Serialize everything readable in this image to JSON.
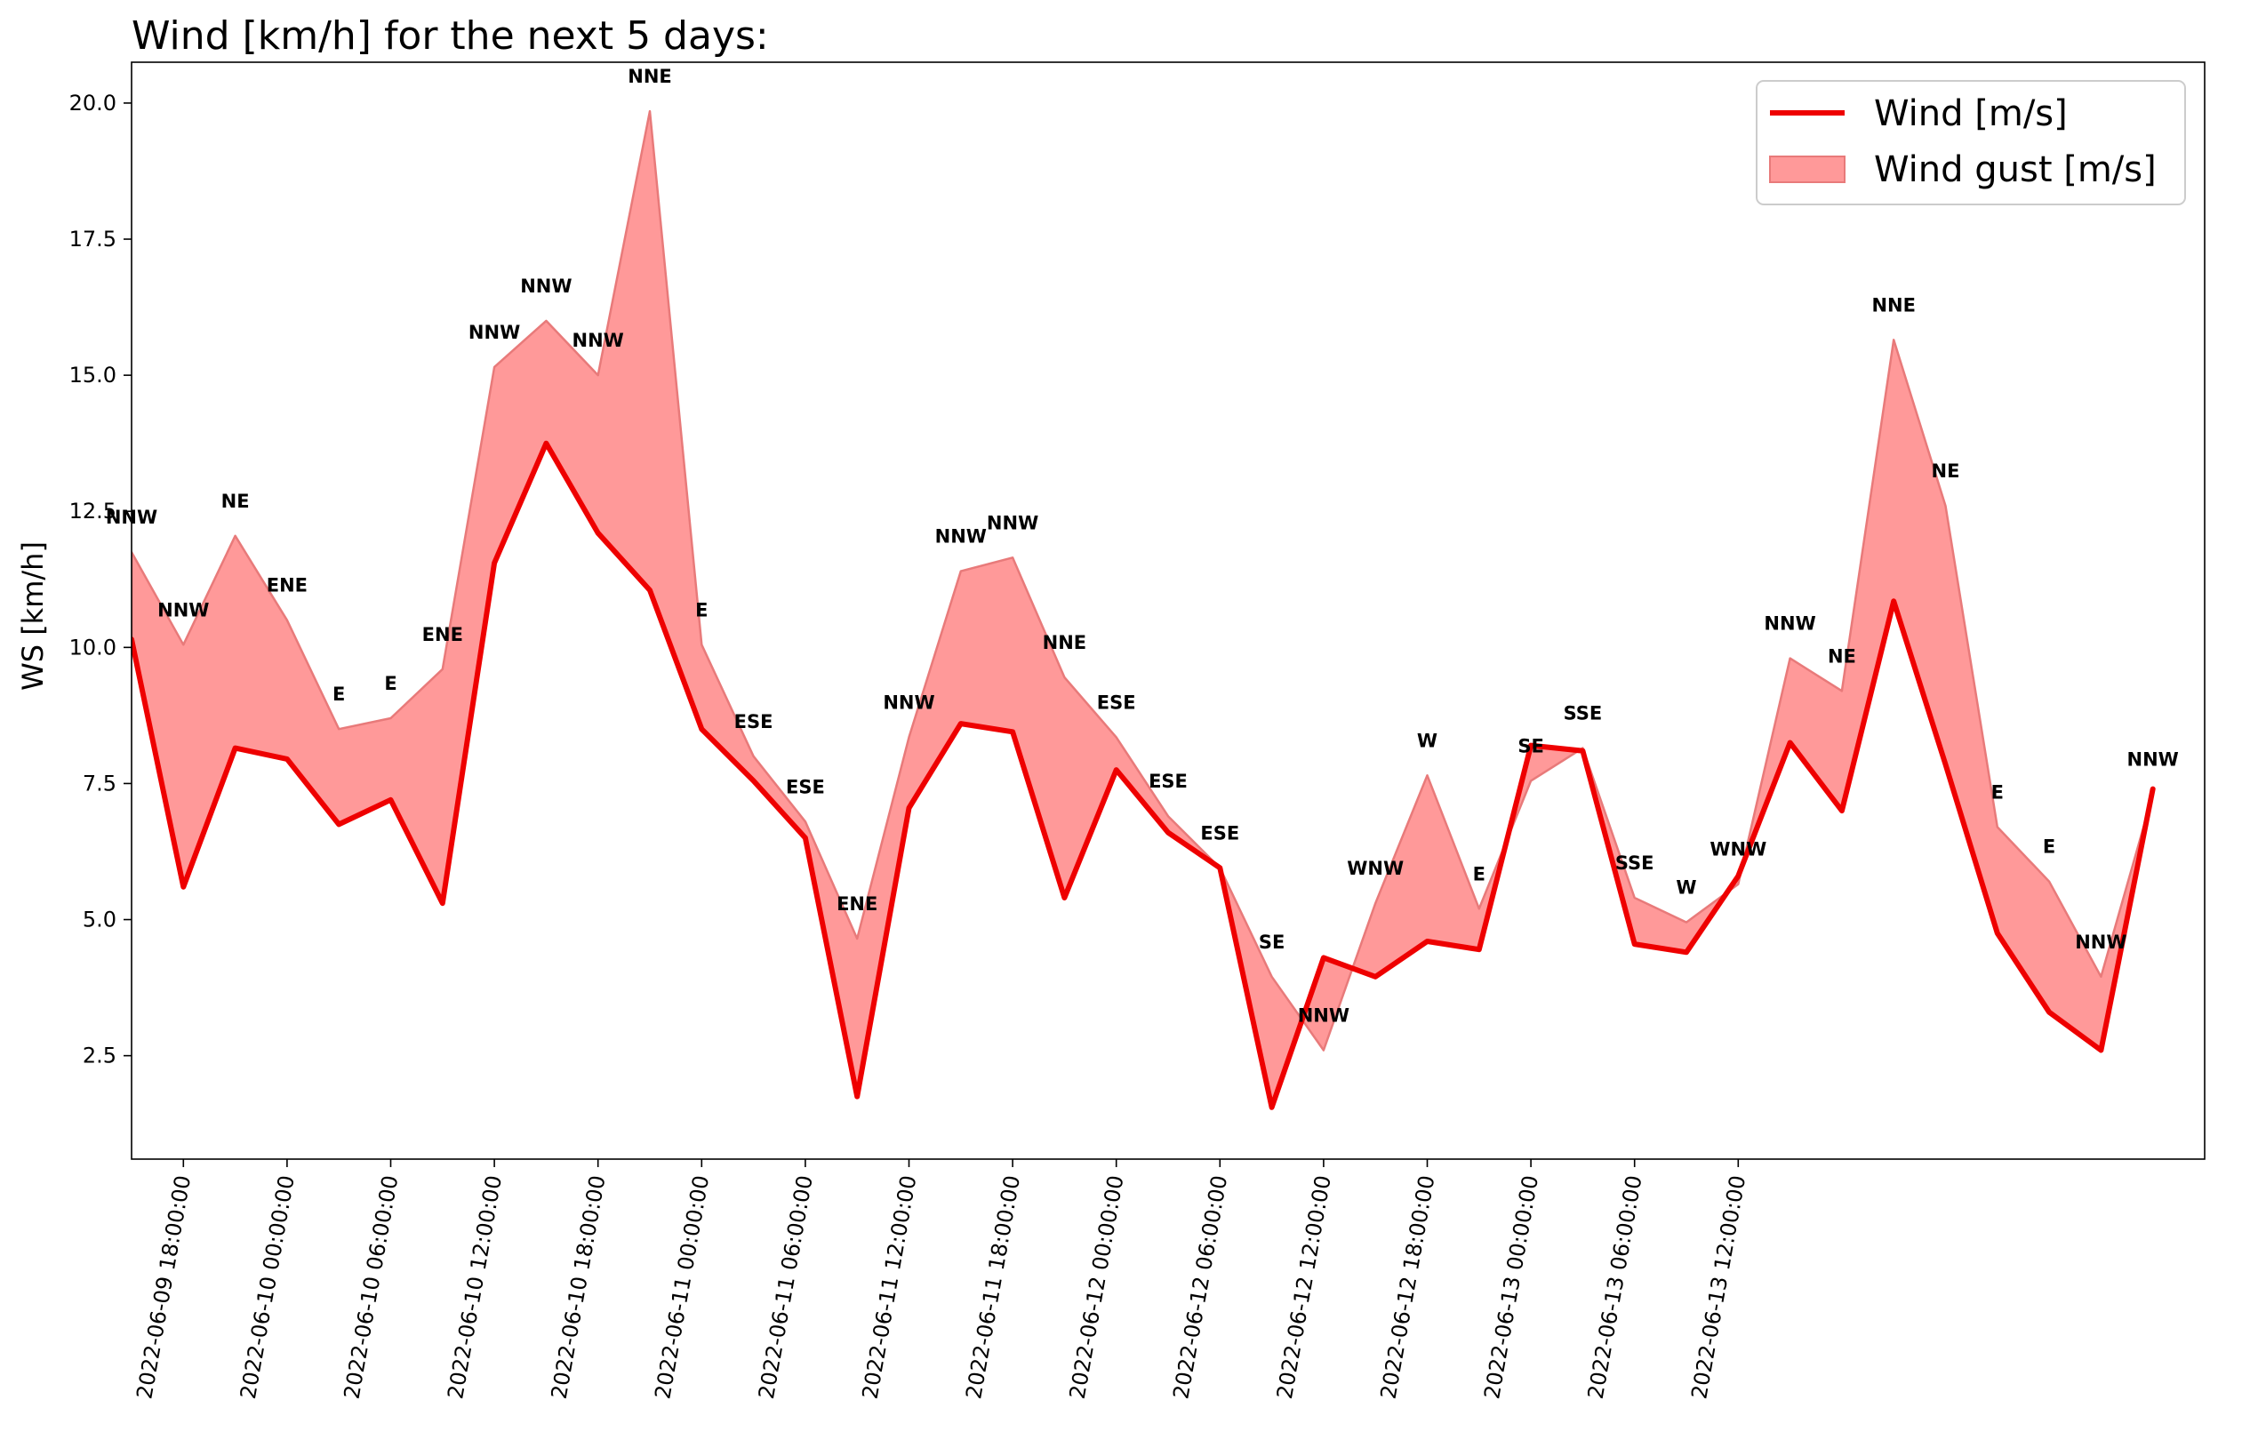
{
  "chart_data": {
    "type": "line",
    "title": "Wind [km/h] for the next 5 days:",
    "ylabel": "WS [km/h]",
    "xlabel": "",
    "x_start": "2022-06-09 15:00:00",
    "x_step_hours": 3,
    "xlim": [
      "2022-06-09 15:00:00",
      "2022-06-14 15:00:00"
    ],
    "ylim": [
      0.6,
      20.75
    ],
    "yticks": [
      2.5,
      5.0,
      7.5,
      10.0,
      12.5,
      15.0,
      17.5,
      20.0
    ],
    "ytick_labels": [
      "2.5",
      "5.0",
      "7.5",
      "10.0",
      "12.5",
      "15.0",
      "17.5",
      "20.0"
    ],
    "xticks": [
      "2022-06-09 18:00:00",
      "2022-06-10 00:00:00",
      "2022-06-10 06:00:00",
      "2022-06-10 12:00:00",
      "2022-06-10 18:00:00",
      "2022-06-11 00:00:00",
      "2022-06-11 06:00:00",
      "2022-06-11 12:00:00",
      "2022-06-11 18:00:00",
      "2022-06-12 00:00:00",
      "2022-06-12 06:00:00",
      "2022-06-12 12:00:00",
      "2022-06-12 18:00:00",
      "2022-06-13 00:00:00",
      "2022-06-13 06:00:00",
      "2022-06-13 12:00:00"
    ],
    "legend_position": "top-right",
    "grid": false,
    "series": [
      {
        "name": "Wind [m/s]",
        "kind": "line",
        "color": "#ee0000",
        "values": [
          10.15,
          5.6,
          8.15,
          7.95,
          6.75,
          7.2,
          5.3,
          11.55,
          13.75,
          12.1,
          11.05,
          8.5,
          7.55,
          6.5,
          1.75,
          7.05,
          8.6,
          8.45,
          5.4,
          7.75,
          6.6,
          5.95,
          1.55,
          4.3,
          3.95,
          4.6,
          4.45,
          8.2,
          8.1,
          4.55,
          4.4,
          5.8,
          8.25,
          7.0,
          10.85,
          7.85,
          4.75,
          3.3,
          2.6,
          7.4
        ]
      },
      {
        "name": "Wind gust [m/s]",
        "kind": "area",
        "color": "#ff9999",
        "values": [
          11.75,
          10.05,
          12.05,
          10.5,
          8.5,
          8.7,
          9.6,
          15.15,
          16.0,
          15.0,
          19.85,
          10.05,
          8.0,
          6.8,
          4.65,
          8.35,
          11.4,
          11.65,
          9.45,
          8.35,
          6.9,
          5.95,
          3.95,
          2.6,
          5.3,
          7.65,
          5.2,
          7.55,
          8.15,
          5.4,
          4.95,
          5.65,
          9.8,
          9.2,
          15.65,
          12.6,
          6.7,
          5.7,
          3.95,
          7.3
        ]
      }
    ],
    "direction_labels": [
      "NNW",
      "NNW",
      "NE",
      "ENE",
      "E",
      "E",
      "ENE",
      "NNW",
      "NNW",
      "NNW",
      "NNE",
      "E",
      "ESE",
      "ESE",
      "ENE",
      "NNW",
      "NNW",
      "NNW",
      "NNE",
      "ESE",
      "ESE",
      "ESE",
      "SE",
      "NNW",
      "WNW",
      "W",
      "E",
      "SE",
      "SSE",
      "SSE",
      "W",
      "WNW",
      "NNW",
      "NE",
      "NNE",
      "NE",
      "E",
      "E",
      "NNW",
      "NNW"
    ]
  }
}
